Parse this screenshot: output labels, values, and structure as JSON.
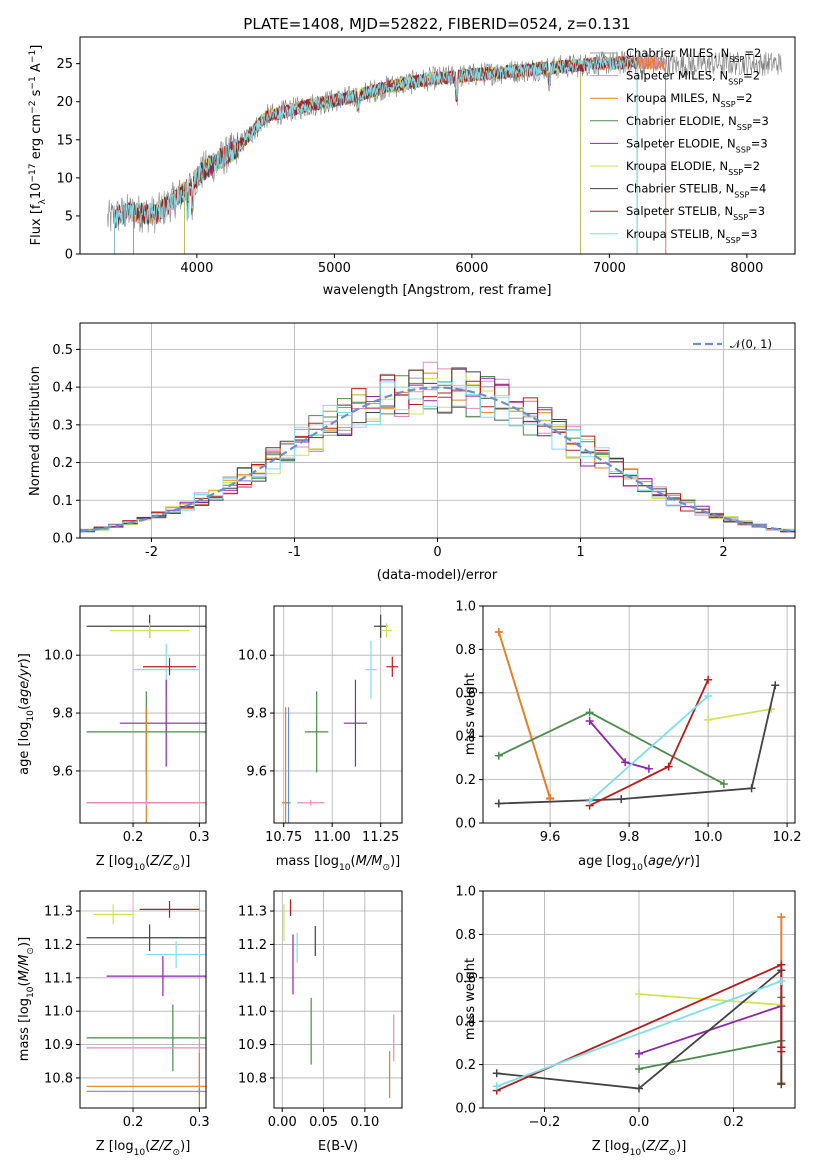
{
  "chart_data": [
    {
      "id": "spectrum",
      "type": "line",
      "title": "PLATE=1408, MJD=52822, FIBERID=0524, z=0.131",
      "xlabel": "wavelength [Angstrom, rest frame]",
      "ylabel": "Flux [f_λ10^-17 erg cm^-2 s^-1 A^-1]",
      "xlim": [
        3150,
        8350
      ],
      "ylim": [
        0,
        28.5
      ],
      "xticks": [
        4000,
        5000,
        6000,
        7000,
        8000
      ],
      "yticks": [
        0,
        5,
        10,
        15,
        20,
        25
      ],
      "legend_position": "upper-right",
      "continuum_x": [
        3350,
        3500,
        3700,
        3900,
        4050,
        4300,
        4500,
        4800,
        5100,
        5400,
        5700,
        6000,
        6300,
        6600,
        6900,
        7200,
        7500,
        7800,
        8100
      ],
      "continuum_y": [
        4.5,
        5.5,
        5.2,
        8,
        11,
        14,
        18,
        19.5,
        20.5,
        22,
        23,
        23.5,
        24,
        24.5,
        25,
        25.2,
        24.8,
        25,
        25
      ],
      "series": [
        {
          "name": "Chabrier MILES, N_SSP=2",
          "color": "#9e9e9e",
          "x_range": [
            3540,
            7410
          ]
        },
        {
          "name": "Salpeter MILES, N_SSP=2",
          "color": "#e78ac3",
          "x_range": [
            3540,
            7410
          ]
        },
        {
          "name": "Kroupa MILES, N_SSP=2",
          "color": "#e6801a",
          "x_range": [
            3540,
            7410
          ]
        },
        {
          "name": "Chabrier ELODIE, N_SSP=3",
          "color": "#4d8a4d",
          "x_range": [
            3910,
            6790
          ]
        },
        {
          "name": "Salpeter ELODIE, N_SSP=3",
          "color": "#8e24aa",
          "x_range": [
            3910,
            6790
          ]
        },
        {
          "name": "Kroupa ELODIE, N_SSP=2",
          "color": "#d4e157",
          "x_range": [
            3910,
            6790
          ]
        },
        {
          "name": "Chabrier STELIB, N_SSP=4",
          "color": "#424242",
          "x_range": [
            3400,
            7200
          ]
        },
        {
          "name": "Salpeter STELIB, N_SSP=3",
          "color": "#b71c1c",
          "x_range": [
            3400,
            7200
          ]
        },
        {
          "name": "Kroupa STELIB, N_SSP=3",
          "color": "#80deea",
          "x_range": [
            3400,
            7200
          ]
        }
      ],
      "data_series": {
        "color": "#808080",
        "x_range": [
          3350,
          8250
        ]
      }
    },
    {
      "id": "residuals",
      "type": "line",
      "xlabel": "(data-model)/error",
      "ylabel": "Normed distribution",
      "xlim": [
        -2.5,
        2.5
      ],
      "ylim": [
        0,
        0.57
      ],
      "xticks": [
        -2,
        -1,
        0,
        1,
        2
      ],
      "yticks": [
        0.0,
        0.1,
        0.2,
        0.3,
        0.4,
        0.5
      ],
      "legend_position": "upper-right",
      "reference": {
        "name": "𝒩(0, 1)",
        "color": "#6a8fd0",
        "style": "dashed"
      },
      "bin_width": 0.1
    },
    {
      "id": "age-vs-z",
      "type": "scatter",
      "xlabel": "Z [log10(Z/Z⊙)]",
      "ylabel": "age [log10(age/yr)]",
      "xlim": [
        0.12,
        0.31
      ],
      "ylim": [
        9.42,
        10.17
      ],
      "xticks": [
        0.2,
        0.3
      ],
      "yticks": [
        9.6,
        9.8,
        10.0
      ],
      "points": [
        {
          "color": "#424242",
          "x": 0.225,
          "y": 10.1,
          "xerr": 0.095,
          "yerr": 0.04
        },
        {
          "color": "#d4e157",
          "x": 0.225,
          "y": 10.085,
          "xerr": 0.06,
          "yerr": 0.025
        },
        {
          "color": "#80deea",
          "x": 0.25,
          "y": 9.95,
          "xerr": 0.05,
          "yerr": 0.09
        },
        {
          "color": "#b71c1c",
          "x": 0.255,
          "y": 9.96,
          "xerr": 0.04,
          "yerr": 0.03
        },
        {
          "color": "#8e24aa",
          "x": 0.25,
          "y": 9.765,
          "xerr": 0.07,
          "yerr": 0.15
        },
        {
          "color": "#4d8a4d",
          "x": 0.22,
          "y": 9.735,
          "xerr": 0.09,
          "yerr": 0.14
        },
        {
          "color": "#e6801a",
          "x": 0.22,
          "y": 9.49,
          "xerr": 0.09,
          "yerr": 0.33
        },
        {
          "color": "#e78ac3",
          "x": 0.22,
          "y": 9.49,
          "xerr": 0.09,
          "yerr": 0.01
        }
      ]
    },
    {
      "id": "age-vs-mass",
      "type": "scatter",
      "xlabel": "mass [log10(M/M⊙)]",
      "xlim": [
        10.7,
        11.36
      ],
      "ylim": [
        9.42,
        10.17
      ],
      "xticks": [
        10.75,
        11.0,
        11.25
      ],
      "yticks": [
        9.6,
        9.8,
        10.0
      ],
      "points": [
        {
          "color": "#424242",
          "x": 11.25,
          "y": 10.1,
          "xerr": 0.035,
          "yerr": 0.04
        },
        {
          "color": "#d4e157",
          "x": 11.28,
          "y": 10.085,
          "xerr": 0.03,
          "yerr": 0.025
        },
        {
          "color": "#80deea",
          "x": 11.2,
          "y": 9.95,
          "xerr": 0.03,
          "yerr": 0.1
        },
        {
          "color": "#b71c1c",
          "x": 11.31,
          "y": 9.96,
          "xerr": 0.03,
          "yerr": 0.035
        },
        {
          "color": "#8e24aa",
          "x": 11.12,
          "y": 9.765,
          "xerr": 0.06,
          "yerr": 0.15
        },
        {
          "color": "#4d8a4d",
          "x": 10.92,
          "y": 9.735,
          "xerr": 0.06,
          "yerr": 0.14
        },
        {
          "color": "#e6801a",
          "x": 10.76,
          "y": 9.49,
          "xerr": 0.02,
          "yerr": 0.33
        },
        {
          "color": "#e78ac3",
          "x": 10.89,
          "y": 9.49,
          "xerr": 0.07,
          "yerr": 0.01
        },
        {
          "color": "#6a8fd0",
          "x": 10.775,
          "y": 9.49,
          "xerr": 0.01,
          "yerr": 0.33
        }
      ]
    },
    {
      "id": "massweight-vs-age",
      "type": "line",
      "xlabel": "age [log10(age/yr)]",
      "ylabel": "mass weight",
      "xlim": [
        9.43,
        10.22
      ],
      "ylim": [
        0,
        1.0
      ],
      "xticks": [
        9.6,
        9.8,
        10.0,
        10.2
      ],
      "yticks": [
        0.0,
        0.2,
        0.4,
        0.6,
        0.8,
        1.0
      ],
      "series": [
        {
          "color": "#e78ac3",
          "x": [
            9.47,
            9.6
          ],
          "y": [
            0.88,
            0.11
          ]
        },
        {
          "color": "#e6801a",
          "x": [
            9.47,
            9.6
          ],
          "y": [
            0.88,
            0.115
          ]
        },
        {
          "color": "#4d8a4d",
          "x": [
            9.47,
            9.7,
            10.04
          ],
          "y": [
            0.31,
            0.51,
            0.18
          ]
        },
        {
          "color": "#8e24aa",
          "x": [
            9.7,
            9.79,
            9.85
          ],
          "y": [
            0.47,
            0.28,
            0.25
          ]
        },
        {
          "color": "#d4e157",
          "x": [
            10.0,
            10.16
          ],
          "y": [
            0.475,
            0.525
          ]
        },
        {
          "color": "#424242",
          "x": [
            9.47,
            9.78,
            10.11,
            10.17
          ],
          "y": [
            0.09,
            0.11,
            0.16,
            0.635
          ]
        },
        {
          "color": "#b71c1c",
          "x": [
            9.7,
            9.9,
            10.0
          ],
          "y": [
            0.08,
            0.26,
            0.66
          ]
        },
        {
          "color": "#80deea",
          "x": [
            9.7,
            10.0
          ],
          "y": [
            0.1,
            0.585
          ]
        }
      ]
    },
    {
      "id": "mass-vs-z",
      "type": "scatter",
      "xlabel": "Z [log10(Z/Z⊙)]",
      "ylabel": "mass [log10(M/M⊙)]",
      "xlim": [
        0.12,
        0.31
      ],
      "ylim": [
        10.71,
        11.36
      ],
      "xticks": [
        0.2,
        0.3
      ],
      "yticks": [
        10.8,
        10.9,
        11.0,
        11.1,
        11.2,
        11.3
      ],
      "points": [
        {
          "color": "#b71c1c",
          "x": 0.255,
          "y": 11.305,
          "xerr": 0.045,
          "yerr": 0.025
        },
        {
          "color": "#d4e157",
          "x": 0.17,
          "y": 11.29,
          "xerr": 0.03,
          "yerr": 0.03
        },
        {
          "color": "#424242",
          "x": 0.225,
          "y": 11.22,
          "xerr": 0.095,
          "yerr": 0.04
        },
        {
          "color": "#80deea",
          "x": 0.265,
          "y": 11.17,
          "xerr": 0.045,
          "yerr": 0.04
        },
        {
          "color": "#8e24aa",
          "x": 0.245,
          "y": 11.105,
          "xerr": 0.085,
          "yerr": 0.06
        },
        {
          "color": "#4d8a4d",
          "x": 0.26,
          "y": 10.92,
          "xerr": 0.13,
          "yerr": 0.1
        },
        {
          "color": "#e78ac3",
          "x": 0.3,
          "y": 10.89,
          "xerr": 0.17,
          "yerr": 0.1
        },
        {
          "color": "#e6801a",
          "x": 0.3,
          "y": 10.775,
          "xerr": 0.17,
          "yerr": 0.1
        },
        {
          "color": "#6a8fd0",
          "x": 0.3,
          "y": 10.76,
          "xerr": 0.17,
          "yerr": 0.01
        }
      ]
    },
    {
      "id": "mass-vs-ebv",
      "type": "scatter",
      "xlabel": "E(B-V)",
      "xlim": [
        -0.01,
        0.145
      ],
      "ylim": [
        10.71,
        11.36
      ],
      "xticks": [
        0.0,
        0.05,
        0.1
      ],
      "yticks": [
        10.8,
        10.9,
        11.0,
        11.1,
        11.2,
        11.3
      ],
      "points": [
        {
          "color": "#b71c1c",
          "x": 0.01,
          "y": 11.31,
          "yerr": 0.025
        },
        {
          "color": "#d4e157",
          "x": 0.002,
          "y": 11.265,
          "yerr": 0.055
        },
        {
          "color": "#80deea",
          "x": 0.018,
          "y": 11.19,
          "yerr": 0.045
        },
        {
          "color": "#8e24aa",
          "x": 0.013,
          "y": 11.14,
          "yerr": 0.09
        },
        {
          "color": "#424242",
          "x": 0.04,
          "y": 11.21,
          "yerr": 0.045
        },
        {
          "color": "#4d8a4d",
          "x": 0.035,
          "y": 10.94,
          "yerr": 0.1
        },
        {
          "color": "#e78ac3",
          "x": 0.135,
          "y": 10.92,
          "yerr": 0.07
        },
        {
          "color": "#e6801a",
          "x": 0.13,
          "y": 10.81,
          "yerr": 0.07
        }
      ]
    },
    {
      "id": "massweight-vs-z",
      "type": "line",
      "xlabel": "Z [log10(Z/Z⊙)]",
      "ylabel": "mass weight",
      "xlim": [
        -0.33,
        0.33
      ],
      "ylim": [
        0,
        1.0
      ],
      "xticks": [
        -0.2,
        0.0,
        0.2
      ],
      "yticks": [
        0.0,
        0.2,
        0.4,
        0.6,
        0.8,
        1.0
      ],
      "series": [
        {
          "color": "#e78ac3",
          "x": [
            0.301,
            0.301
          ],
          "y": [
            0.88,
            0.11
          ]
        },
        {
          "color": "#e6801a",
          "x": [
            0.301,
            0.301
          ],
          "y": [
            0.88,
            0.115
          ]
        },
        {
          "color": "#4d8a4d",
          "x": [
            0.0,
            0.301,
            0.301
          ],
          "y": [
            0.18,
            0.31,
            0.51
          ]
        },
        {
          "color": "#8e24aa",
          "x": [
            0.0,
            0.301,
            0.301
          ],
          "y": [
            0.25,
            0.47,
            0.28
          ]
        },
        {
          "color": "#d4e157",
          "x": [
            0.0,
            0.301
          ],
          "y": [
            0.525,
            0.475
          ]
        },
        {
          "color": "#424242",
          "x": [
            -0.301,
            0.0,
            0.301,
            0.301
          ],
          "y": [
            0.16,
            0.09,
            0.635,
            0.11
          ]
        },
        {
          "color": "#b71c1c",
          "x": [
            -0.301,
            0.301,
            0.301,
            0.301
          ],
          "y": [
            0.08,
            0.66,
            0.26,
            0.28
          ]
        },
        {
          "color": "#80deea",
          "x": [
            -0.301,
            0.301
          ],
          "y": [
            0.1,
            0.585
          ]
        }
      ]
    }
  ]
}
